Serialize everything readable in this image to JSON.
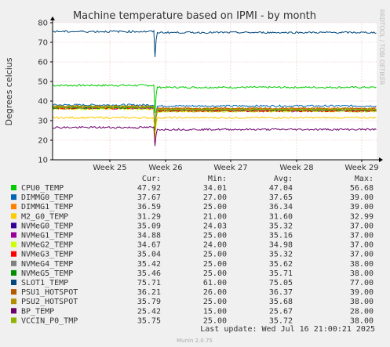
{
  "chart_data": {
    "type": "line",
    "title": "Machine temperature based on IPMI - by month",
    "ylabel": "Degrees celcius",
    "xlabel": "",
    "ylim": [
      10,
      80
    ],
    "yticks": [
      10,
      20,
      30,
      40,
      50,
      60,
      70,
      80
    ],
    "xticks": [
      "Week 25",
      "Week 26",
      "Week 27",
      "Week 28",
      "Week 29"
    ],
    "grid": true,
    "legend_position": "bottom",
    "drop_at": "Week 26",
    "series": [
      {
        "name": "CPU0_TEMP",
        "color": "#00cc00",
        "cur": "47.92",
        "min": "34.01",
        "avg": "47.04",
        "max": "56.68",
        "before": 48.0,
        "after": 47.0,
        "low": 34.0
      },
      {
        "name": "DIMMG0_TEMP",
        "color": "#0066b3",
        "cur": "37.67",
        "min": "27.00",
        "avg": "37.65",
        "max": "39.00",
        "before": 38.0,
        "after": 37.5,
        "low": 27.0
      },
      {
        "name": "DIMMG1_TEMP",
        "color": "#ff8000",
        "cur": "36.59",
        "min": "25.00",
        "avg": "36.34",
        "max": "39.00",
        "before": 37.0,
        "after": 36.2,
        "low": 25.0
      },
      {
        "name": "M2_G0_TEMP",
        "color": "#ffcc00",
        "cur": "31.29",
        "min": "21.00",
        "avg": "31.60",
        "max": "32.99",
        "before": 31.5,
        "after": 31.5,
        "low": 21.0
      },
      {
        "name": "NVMeG0_TEMP",
        "color": "#330099",
        "cur": "35.09",
        "min": "24.03",
        "avg": "35.32",
        "max": "37.00",
        "before": 36.5,
        "after": 35.1,
        "low": 24.0
      },
      {
        "name": "NVMeG1_TEMP",
        "color": "#990099",
        "cur": "34.88",
        "min": "25.00",
        "avg": "35.16",
        "max": "37.00",
        "before": 36.3,
        "after": 34.9,
        "low": 25.0
      },
      {
        "name": "NVMeG2_TEMP",
        "color": "#ccff00",
        "cur": "34.67",
        "min": "24.00",
        "avg": "34.98",
        "max": "37.00",
        "before": 36.0,
        "after": 34.7,
        "low": 24.0
      },
      {
        "name": "NVMeG3_TEMP",
        "color": "#ff0000",
        "cur": "35.04",
        "min": "25.00",
        "avg": "35.32",
        "max": "37.00",
        "before": 36.4,
        "after": 35.0,
        "low": 25.0
      },
      {
        "name": "NVMeG4_TEMP",
        "color": "#808080",
        "cur": "35.42",
        "min": "25.00",
        "avg": "35.62",
        "max": "38.00",
        "before": 36.6,
        "after": 35.4,
        "low": 25.0
      },
      {
        "name": "NVMeG5_TEMP",
        "color": "#008f00",
        "cur": "35.46",
        "min": "25.00",
        "avg": "35.71",
        "max": "38.00",
        "before": 36.7,
        "after": 35.5,
        "low": 25.0
      },
      {
        "name": "SLOT1_TEMP",
        "color": "#00487d",
        "cur": "75.71",
        "min": "61.00",
        "avg": "75.05",
        "max": "77.00",
        "before": 75.5,
        "after": 75.0,
        "low": 62.5
      },
      {
        "name": "PSU1_HOTSPOT",
        "color": "#b35a00",
        "cur": "36.21",
        "min": "26.00",
        "avg": "36.37",
        "max": "39.00",
        "before": 37.4,
        "after": 36.2,
        "low": 26.0
      },
      {
        "name": "PSU2_HOTSPOT",
        "color": "#b38f00",
        "cur": "35.79",
        "min": "25.00",
        "avg": "35.68",
        "max": "38.00",
        "before": 36.9,
        "after": 35.7,
        "low": 25.0
      },
      {
        "name": "BP_TEMP",
        "color": "#6b006b",
        "cur": "25.42",
        "min": "15.00",
        "avg": "25.67",
        "max": "28.00",
        "before": 26.5,
        "after": 25.5,
        "low": 17.0
      },
      {
        "name": "VCCIN_P0_TMP",
        "color": "#8fb300",
        "cur": "35.75",
        "min": "25.00",
        "avg": "35.72",
        "max": "38.00",
        "before": 37.2,
        "after": 35.7,
        "low": 25.0
      }
    ]
  },
  "legend_headers": {
    "cur": "Cur:",
    "min": "Min:",
    "avg": "Avg:",
    "max": "Max:"
  },
  "side_label": "RRDTOOL / TOBI OETIKER",
  "last_update": "Last update: Wed Jul 16 21:00:21 2025",
  "footer": "Munin 2.0.75"
}
